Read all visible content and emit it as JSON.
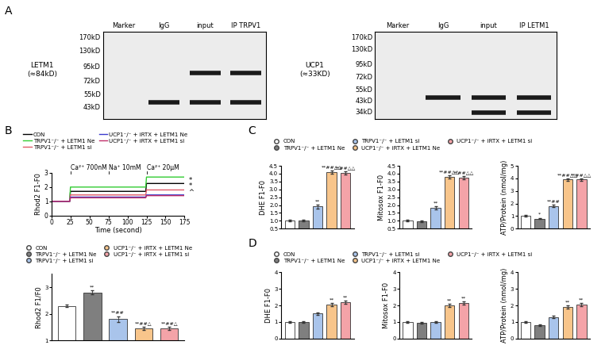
{
  "panel_labels": [
    "A",
    "B",
    "C",
    "D"
  ],
  "blots": [
    {
      "protein": "LETM1",
      "size": "(≈84kD)",
      "lanes": [
        "Marker",
        "IgG",
        "input",
        "IP TRPV1"
      ],
      "ylim": [
        34,
        190
      ],
      "yticks": [
        {
          "value": 170,
          "label": "170kD"
        },
        {
          "value": 130,
          "label": "130kD"
        },
        {
          "value": 95,
          "label": "95kD"
        },
        {
          "value": 72,
          "label": "72kD"
        },
        {
          "value": 55,
          "label": "55kD"
        },
        {
          "value": 43,
          "label": "43kD"
        }
      ],
      "bands": [
        {
          "lane": "input",
          "kD": 84
        },
        {
          "lane": "IP TRPV1",
          "kD": 84
        },
        {
          "lane": "IgG",
          "kD": 47
        },
        {
          "lane": "input",
          "kD": 47
        },
        {
          "lane": "IP TRPV1",
          "kD": 47
        }
      ]
    },
    {
      "protein": "UCP1",
      "size": "(≈33KD)",
      "lanes": [
        "Marker",
        "IgG",
        "input",
        "IP LETM1"
      ],
      "ylim": [
        29,
        190
      ],
      "yticks": [
        {
          "value": 170,
          "label": "170kD"
        },
        {
          "value": 130,
          "label": "130kD"
        },
        {
          "value": 95,
          "label": "95kD"
        },
        {
          "value": 72,
          "label": "72kD"
        },
        {
          "value": 55,
          "label": "55kD"
        },
        {
          "value": 43,
          "label": "43kD"
        },
        {
          "value": 34,
          "label": "34kD"
        }
      ],
      "bands": [
        {
          "lane": "IgG",
          "kD": 46
        },
        {
          "lane": "input",
          "kD": 46
        },
        {
          "lane": "IP LETM1",
          "kD": 46
        },
        {
          "lane": "input",
          "kD": 33
        },
        {
          "lane": "IP LETM1",
          "kD": 33
        }
      ]
    }
  ],
  "chart_data": [
    {
      "type": "line",
      "xlabel": "Time (second)",
      "ylabel": "Rhod2 F1-F0",
      "xlim": [
        0,
        175
      ],
      "xticks": [
        0,
        25,
        50,
        75,
        100,
        125,
        150,
        175
      ],
      "ylim": [
        0,
        3
      ],
      "yticks": [
        0,
        1,
        2,
        3
      ],
      "x": [
        0,
        24,
        25,
        124,
        125,
        175
      ],
      "series": [
        {
          "name": "CON",
          "color": "#000000",
          "values": [
            1,
            1,
            1.7,
            1.7,
            2.25,
            2.25
          ]
        },
        {
          "name": "TRPV1⁻/⁻ + LETM1 Ne",
          "color": "#33cc33",
          "values": [
            1,
            1,
            2.0,
            2.0,
            2.7,
            2.7
          ]
        },
        {
          "name": "TRPV1⁻/⁻ + LETM1 si",
          "color": "#e05a68",
          "values": [
            1,
            1,
            1.45,
            1.45,
            1.8,
            1.8
          ]
        },
        {
          "name": "UCP1⁻/⁻ + iRTX + LETM1 Ne",
          "color": "#3a3acc",
          "values": [
            1,
            1,
            1.3,
            1.3,
            1.45,
            1.45
          ]
        },
        {
          "name": "UCP1⁻/⁻ + iRTX + LETM1 si",
          "color": "#c0306a",
          "values": [
            1,
            1,
            1.25,
            1.25,
            1.4,
            1.4
          ]
        }
      ],
      "annotations": [
        {
          "text": "Ca²⁺ 700nM",
          "x": 25
        },
        {
          "text": "Na⁺ 10mM",
          "x": 75
        },
        {
          "text": "Ca²⁺ 20μM",
          "x": 125
        }
      ],
      "significance": [
        {
          "text": "*",
          "y": 2.45
        },
        {
          "text": "*",
          "y": 2.05
        },
        {
          "text": "^",
          "y": 1.65
        }
      ],
      "legend": "lower left"
    },
    {
      "type": "bar",
      "ylabel": "Rhod2 F1/F0",
      "categories": [
        "CON",
        "TRPV1⁻/⁻ + LETM1 Ne",
        "TRPV1⁻/⁻ + LETM1 si",
        "UCP1⁻/⁻ + iRTX + LETM1 Ne",
        "UCP1⁻/⁻ + iRTX + LETM1 si"
      ],
      "values": [
        2.3,
        2.8,
        1.8,
        1.45,
        1.45
      ],
      "errors": [
        0.05,
        0.08,
        0.1,
        0.07,
        0.07
      ],
      "significance": [
        null,
        "**",
        "**##",
        "**##△",
        "**##△"
      ],
      "colors": [
        "#ffffff",
        "#7f7f7f",
        "#a9c4eb",
        "#f8c58b",
        "#f4a3a8"
      ],
      "ylim": [
        1,
        3.5
      ],
      "yticks": [
        1,
        2,
        3
      ],
      "tick_labels": "y",
      "legend": "lower left"
    },
    {
      "type": "bar",
      "ylabel": "DHE F1-F0",
      "categories": [
        "CON",
        "TRPV1⁻/⁻ + LETM1 Ne",
        "TRPV1⁻/⁻ + LETM1 si",
        "UCP1⁻/⁻ + iRTX + LETM1 Ne",
        "UCP1⁻/⁻ + iRTX + LETM1 si"
      ],
      "values": [
        1.0,
        1.0,
        1.9,
        4.1,
        4.05
      ],
      "errors": [
        0.05,
        0.06,
        0.12,
        0.1,
        0.1
      ],
      "significance": [
        null,
        null,
        "**",
        "**##△△",
        "**##△△"
      ],
      "colors": [
        "#ffffff",
        "#7f7f7f",
        "#a9c4eb",
        "#f8c58b",
        "#f4a3a8"
      ],
      "ylim": [
        0.5,
        4.5
      ],
      "yticks": [
        0.5,
        1.0,
        1.5,
        2.0,
        2.5,
        3.0,
        3.5,
        4.0,
        4.5
      ],
      "tick_labels": "y",
      "legend": "lower left"
    },
    {
      "type": "bar",
      "ylabel": "Mitosox F1-F0",
      "categories": [
        "CON",
        "TRPV1⁻/⁻ + LETM1 Ne",
        "TRPV1⁻/⁻ + LETM1 si",
        "UCP1⁻/⁻ + iRTX + LETM1 Ne",
        "UCP1⁻/⁻ + iRTX + LETM1 si"
      ],
      "values": [
        1.0,
        0.95,
        1.8,
        3.8,
        3.75
      ],
      "errors": [
        0.05,
        0.06,
        0.1,
        0.1,
        0.1
      ],
      "significance": [
        null,
        null,
        "**",
        "**##△△",
        "**##△△"
      ],
      "colors": [
        "#ffffff",
        "#7f7f7f",
        "#a9c4eb",
        "#f8c58b",
        "#f4a3a8"
      ],
      "ylim": [
        0.5,
        4.5
      ],
      "yticks": [
        0.5,
        1.0,
        1.5,
        2.0,
        2.5,
        3.0,
        3.5,
        4.0,
        4.5
      ],
      "tick_labels": "y"
    },
    {
      "type": "bar",
      "ylabel": "ATP/Protein (nmol/mg)",
      "categories": [
        "CON",
        "TRPV1⁻/⁻ + LETM1 Ne",
        "TRPV1⁻/⁻ + LETM1 si",
        "UCP1⁻/⁻ + iRTX + LETM1 Ne",
        "UCP1⁻/⁻ + iRTX + LETM1 si"
      ],
      "values": [
        1.0,
        0.8,
        1.8,
        3.9,
        3.9
      ],
      "errors": [
        0.06,
        0.06,
        0.1,
        0.1,
        0.1
      ],
      "significance": [
        null,
        "*",
        "**##",
        "**##△△",
        "**##△△"
      ],
      "colors": [
        "#ffffff",
        "#7f7f7f",
        "#a9c4eb",
        "#f8c58b",
        "#f4a3a8"
      ],
      "ylim": [
        0,
        5
      ],
      "yticks": [
        0,
        1,
        2,
        3,
        4,
        5
      ],
      "tick_labels": "y"
    },
    {
      "type": "bar",
      "ylabel": "DHE F1-F0",
      "categories": [
        "CON",
        "TRPV1⁻/⁻ + LETM1 Ne",
        "TRPV1⁻/⁻ + LETM1 si",
        "UCP1⁻/⁻ + iRTX + LETM1 Ne",
        "UCP1⁻/⁻ + iRTX + LETM1 si"
      ],
      "values": [
        1.0,
        1.0,
        1.5,
        2.05,
        2.2
      ],
      "errors": [
        0.05,
        0.06,
        0.08,
        0.1,
        0.1
      ],
      "significance": [
        null,
        null,
        null,
        "**",
        "**"
      ],
      "colors": [
        "#ffffff",
        "#7f7f7f",
        "#a9c4eb",
        "#f8c58b",
        "#f4a3a8"
      ],
      "ylim": [
        0,
        4
      ],
      "yticks": [
        0,
        1,
        2,
        3,
        4
      ],
      "tick_labels": "y",
      "legend": "lower left"
    },
    {
      "type": "bar",
      "ylabel": "Mitosox F1-F0",
      "categories": [
        "CON",
        "TRPV1⁻/⁻ + LETM1 Ne",
        "TRPV1⁻/⁻ + LETM1 si",
        "UCP1⁻/⁻ + iRTX + LETM1 Ne",
        "UCP1⁻/⁻ + iRTX + LETM1 si"
      ],
      "values": [
        1.0,
        0.95,
        1.0,
        2.0,
        2.15
      ],
      "errors": [
        0.05,
        0.05,
        0.06,
        0.1,
        0.1
      ],
      "significance": [
        null,
        null,
        null,
        "**",
        "**"
      ],
      "colors": [
        "#ffffff",
        "#7f7f7f",
        "#a9c4eb",
        "#f8c58b",
        "#f4a3a8"
      ],
      "ylim": [
        0,
        4
      ],
      "yticks": [
        0,
        1,
        2,
        3,
        4
      ],
      "tick_labels": "y"
    },
    {
      "type": "bar",
      "ylabel": "ATP/Protein (nmol/mg)",
      "categories": [
        "CON",
        "TRPV1⁻/⁻ + LETM1 Ne",
        "TRPV1⁻/⁻ + LETM1 si",
        "UCP1⁻/⁻ + iRTX + LETM1 Ne",
        "UCP1⁻/⁻ + iRTX + LETM1 si"
      ],
      "values": [
        1.0,
        0.8,
        1.3,
        1.9,
        2.05
      ],
      "errors": [
        0.05,
        0.05,
        0.07,
        0.1,
        0.1
      ],
      "significance": [
        null,
        null,
        null,
        "**",
        "**"
      ],
      "colors": [
        "#ffffff",
        "#7f7f7f",
        "#a9c4eb",
        "#f8c58b",
        "#f4a3a8"
      ],
      "ylim": [
        0,
        4
      ],
      "yticks": [
        0,
        1,
        2,
        3,
        4
      ],
      "tick_labels": "y"
    }
  ]
}
